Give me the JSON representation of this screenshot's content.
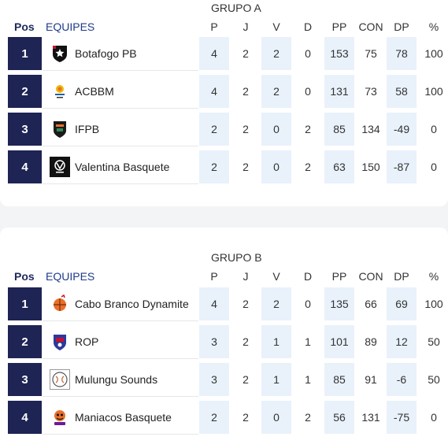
{
  "headers": {
    "pos": "Pos",
    "team": "EQUIPES",
    "p": "P",
    "j": "J",
    "v": "V",
    "d": "D",
    "pp": "PP",
    "con": "CON",
    "dp": "DP",
    "pct": "%"
  },
  "groups": [
    {
      "title": "GRUPO A",
      "rows": [
        {
          "pos": "1",
          "team": "Botafogo PB",
          "logo": "botafogo-star-shield",
          "p": "4",
          "j": "2",
          "v": "2",
          "d": "0",
          "pp": "153",
          "con": "75",
          "dp": "78",
          "pct": "100"
        },
        {
          "pos": "2",
          "team": "ACBBM",
          "logo": "acbbm-sun-emblem",
          "p": "4",
          "j": "2",
          "v": "2",
          "d": "0",
          "pp": "131",
          "con": "73",
          "dp": "58",
          "pct": "100"
        },
        {
          "pos": "3",
          "team": "IFPB",
          "logo": "ifpb-shield",
          "p": "2",
          "j": "2",
          "v": "0",
          "d": "2",
          "pp": "85",
          "con": "134",
          "dp": "-49",
          "pct": "0"
        },
        {
          "pos": "4",
          "team": "Valentina Basquete",
          "logo": "valentina-black-square",
          "p": "2",
          "j": "2",
          "v": "0",
          "d": "2",
          "pp": "63",
          "con": "150",
          "dp": "-87",
          "pct": "0"
        }
      ]
    },
    {
      "title": "GRUPO B",
      "rows": [
        {
          "pos": "1",
          "team": "Cabo Branco Dynamite",
          "logo": "dynamite-ball",
          "p": "4",
          "j": "2",
          "v": "2",
          "d": "0",
          "pp": "135",
          "con": "66",
          "dp": "69",
          "pct": "100"
        },
        {
          "pos": "2",
          "team": "ROP",
          "logo": "rop-shield",
          "p": "3",
          "j": "2",
          "v": "1",
          "d": "1",
          "pp": "101",
          "con": "89",
          "dp": "12",
          "pct": "50"
        },
        {
          "pos": "3",
          "team": "Mulungu Sounds",
          "logo": "mulungu-circle",
          "p": "3",
          "j": "2",
          "v": "1",
          "d": "1",
          "pp": "85",
          "con": "91",
          "dp": "-6",
          "pct": "50"
        },
        {
          "pos": "4",
          "team": "Maniacos Basquete",
          "logo": "maniacos-mascot",
          "p": "2",
          "j": "2",
          "v": "0",
          "d": "2",
          "pp": "56",
          "con": "131",
          "dp": "-75",
          "pct": "0"
        }
      ]
    }
  ]
}
